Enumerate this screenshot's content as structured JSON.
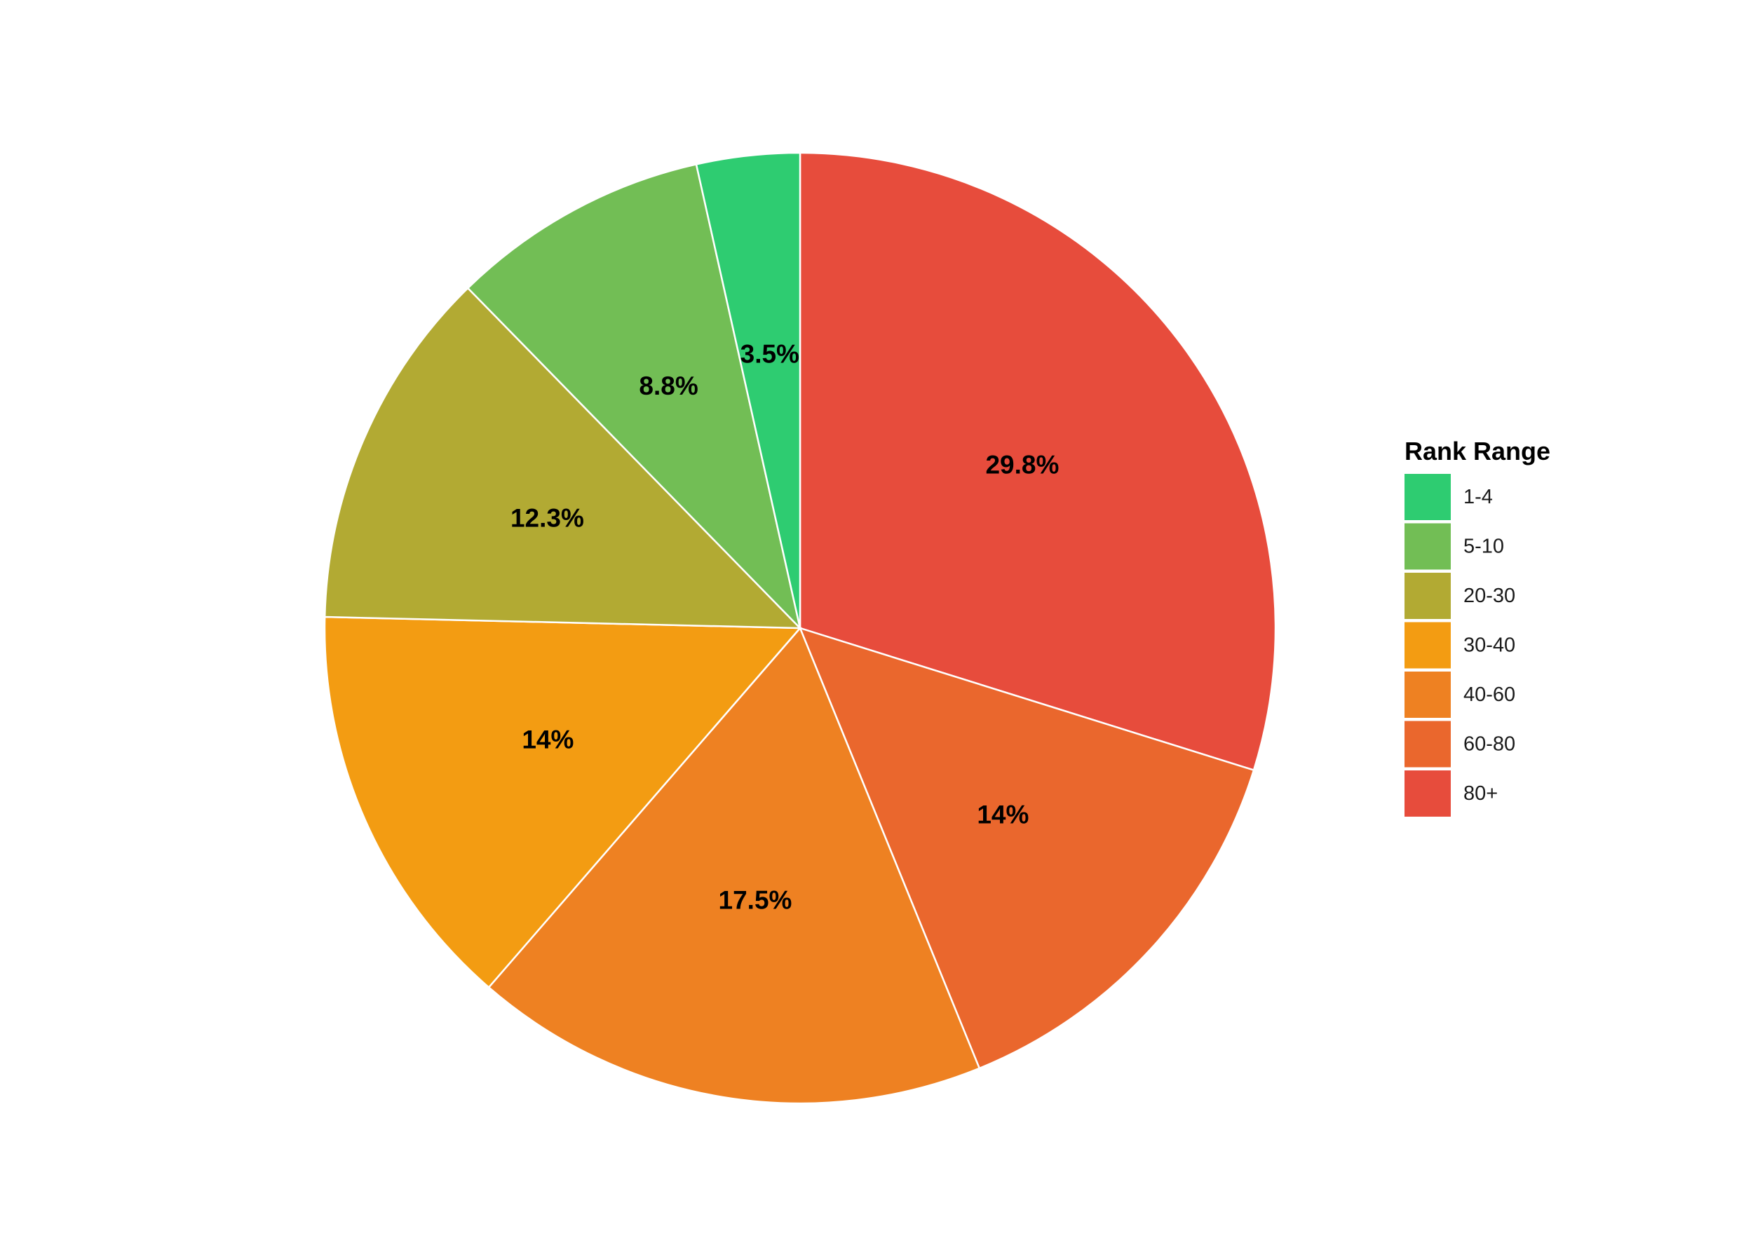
{
  "chart_data": {
    "type": "pie",
    "title": "",
    "legend_title": "Rank Range",
    "legend_position": "right",
    "direction": "clockwise",
    "start": "top",
    "categories": [
      "1-4",
      "5-10",
      "20-30",
      "30-40",
      "40-60",
      "60-80",
      "80+"
    ],
    "values": [
      3.5,
      8.8,
      12.3,
      14.0,
      17.5,
      14.0,
      29.8
    ],
    "labels": [
      "3.5%",
      "8.8%",
      "12.3%",
      "14%",
      "17.5%",
      "14%",
      "29.8%"
    ],
    "colors": [
      "#2ECC71",
      "#72BE55",
      "#B2AA33",
      "#F39C12",
      "#EE8122",
      "#EA672D",
      "#E74C3C"
    ],
    "slice_order": [
      "80+",
      "60-80",
      "40-60",
      "30-40",
      "20-30",
      "5-10",
      "1-4"
    ]
  }
}
